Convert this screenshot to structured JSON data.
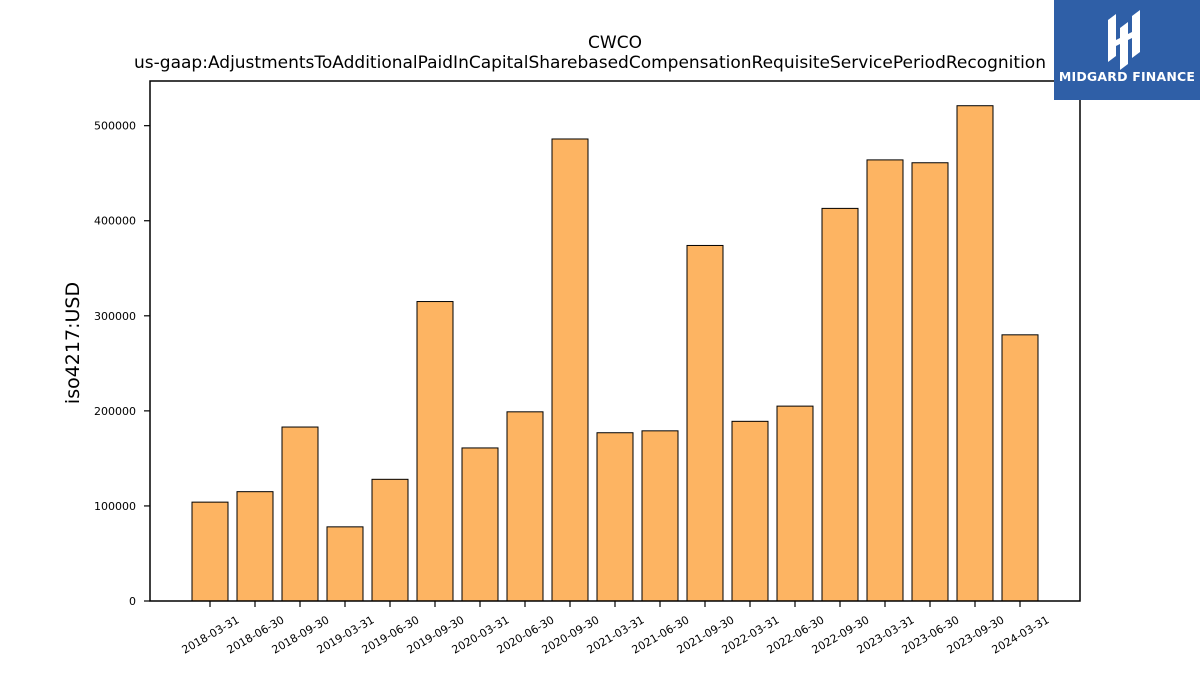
{
  "chart_data": {
    "type": "bar",
    "title": "CWCO",
    "subtitle": "us-gaap:AdjustmentsToAdditionalPaidInCapitalSharebasedCompensationRequisiteServicePeriodRecognition",
    "xlabel": "",
    "ylabel": "iso4217:USD",
    "categories": [
      "2018-03-31",
      "2018-06-30",
      "2018-09-30",
      "2019-03-31",
      "2019-06-30",
      "2019-09-30",
      "2020-03-31",
      "2020-06-30",
      "2020-09-30",
      "2021-03-31",
      "2021-06-30",
      "2021-09-30",
      "2022-03-31",
      "2022-06-30",
      "2022-09-30",
      "2023-03-31",
      "2023-06-30",
      "2023-09-30",
      "2024-03-31"
    ],
    "values": [
      104000,
      115000,
      183000,
      78000,
      128000,
      315000,
      161000,
      199000,
      486000,
      177000,
      179000,
      374000,
      189000,
      205000,
      413000,
      464000,
      461000,
      521000,
      280000
    ],
    "ylim": [
      0,
      547000
    ],
    "yticks": [
      0,
      100000,
      200000,
      300000,
      400000,
      500000
    ],
    "bar_color": "#fdb462",
    "bar_edge_color": "#000000",
    "grid": false,
    "legend": "none"
  },
  "logo": {
    "text": "MIDGARD FINANCE",
    "background": "#2f5fa7"
  }
}
